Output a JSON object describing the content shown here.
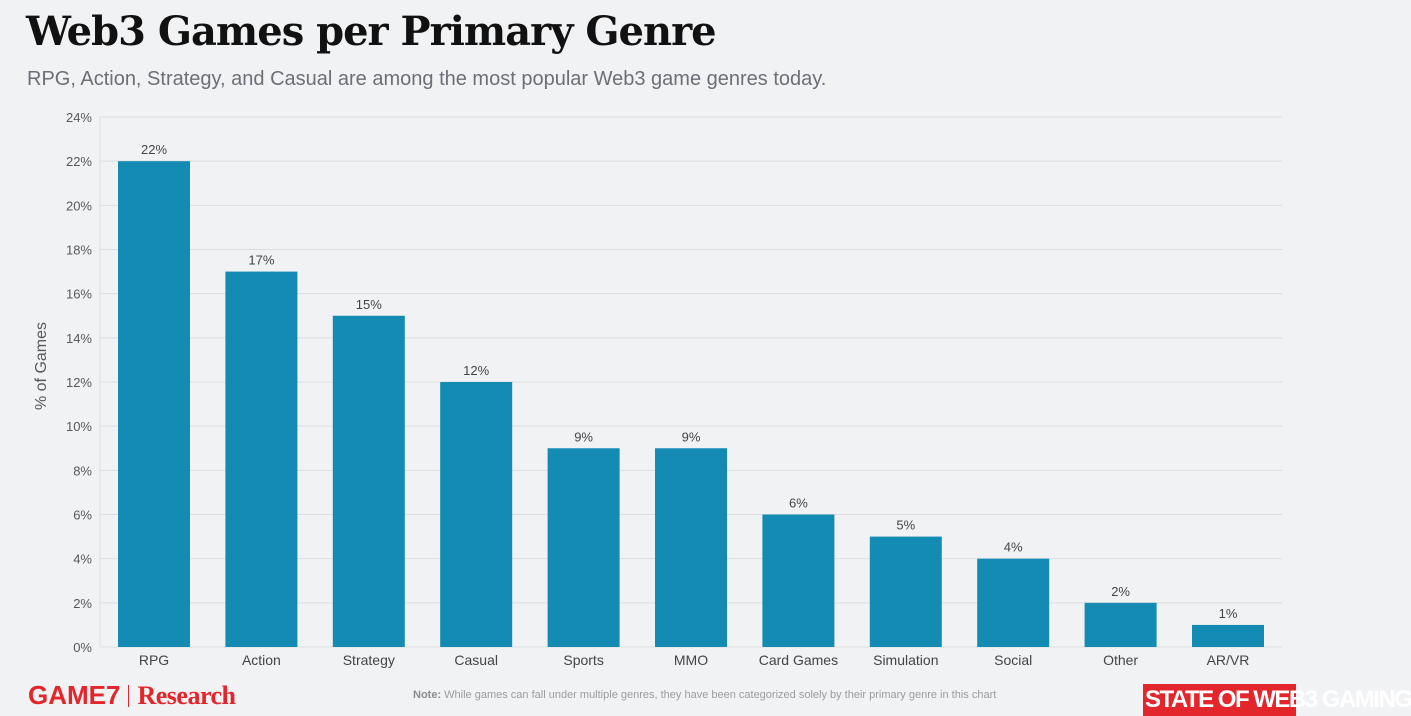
{
  "header": {
    "title": "Web3 Games per Primary Genre",
    "subtitle": "RPG, Action, Strategy, and Casual are among the most popular Web3 game genres today."
  },
  "chart_data": {
    "type": "bar",
    "title": "Web3 Games per Primary Genre",
    "xlabel": "",
    "ylabel": "% of  Games",
    "categories": [
      "RPG",
      "Action",
      "Strategy",
      "Casual",
      "Sports",
      "MMO",
      "Card Games",
      "Simulation",
      "Social",
      "Other",
      "AR/VR"
    ],
    "values": [
      22,
      17,
      15,
      12,
      9,
      9,
      6,
      5,
      4,
      2,
      1
    ],
    "data_labels": [
      "22%",
      "17%",
      "15%",
      "12%",
      "9%",
      "9%",
      "6%",
      "5%",
      "4%",
      "2%",
      "1%"
    ],
    "ylim": [
      0,
      24
    ],
    "yticks": [
      "0%",
      "2%",
      "4%",
      "6%",
      "8%",
      "10%",
      "12%",
      "14%",
      "16%",
      "18%",
      "20%",
      "22%",
      "24%"
    ],
    "grid": true,
    "bar_color": "#138bb3"
  },
  "footer": {
    "logo": "GAME7",
    "logo_suffix": "Research",
    "note_label": "Note:",
    "note": "While games can fall under multiple genres, they have been categorized solely by their primary genre in this chart",
    "badge": "STATE OF WEB3 GAMING"
  }
}
